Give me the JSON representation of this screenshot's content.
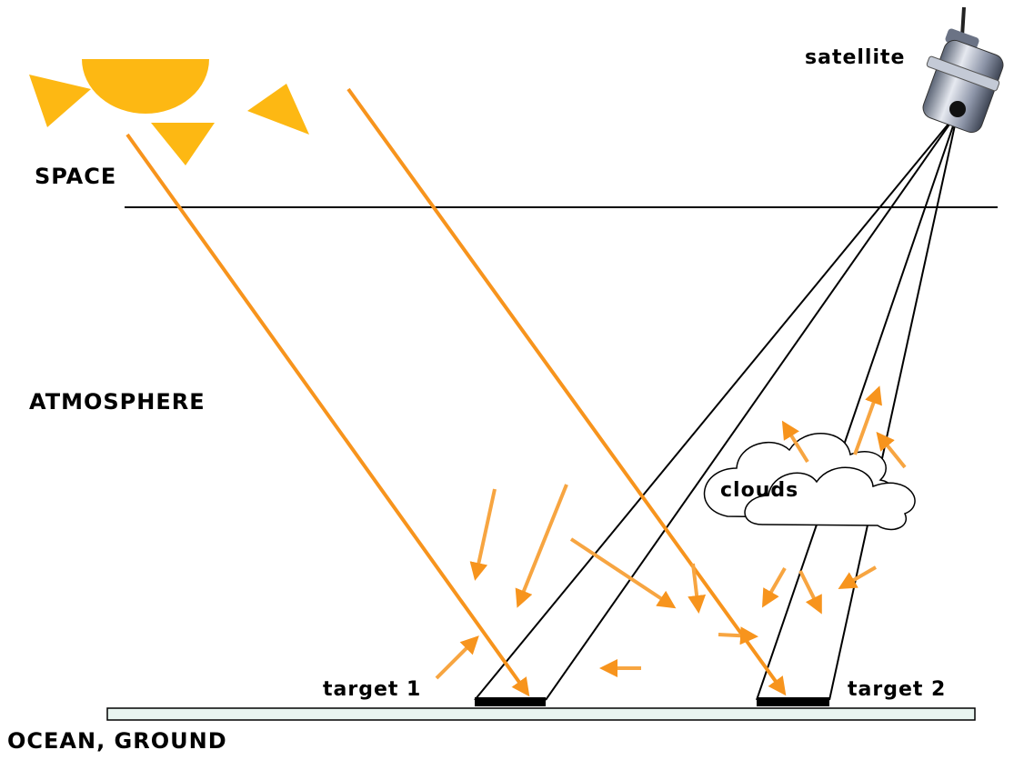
{
  "labels": {
    "satellite": "satellite",
    "space": "SPACE",
    "atmosphere": "ATMOSPHERE",
    "clouds": "clouds",
    "target_1": "target 1",
    "target_2": "target 2",
    "ground": "OCEAN, GROUND"
  },
  "colors": {
    "sun": "#FDB813",
    "sun_ray": "#F7941D",
    "scatter_arrow": "#F7A541",
    "line": "#000000",
    "ground_fill": "#E8F5F0",
    "target_patch": "#000000",
    "satellite_body": "#9AA3B5"
  },
  "icons": {
    "sun": "sun-icon",
    "satellite": "satellite-icon",
    "clouds": "cloud-icon"
  }
}
